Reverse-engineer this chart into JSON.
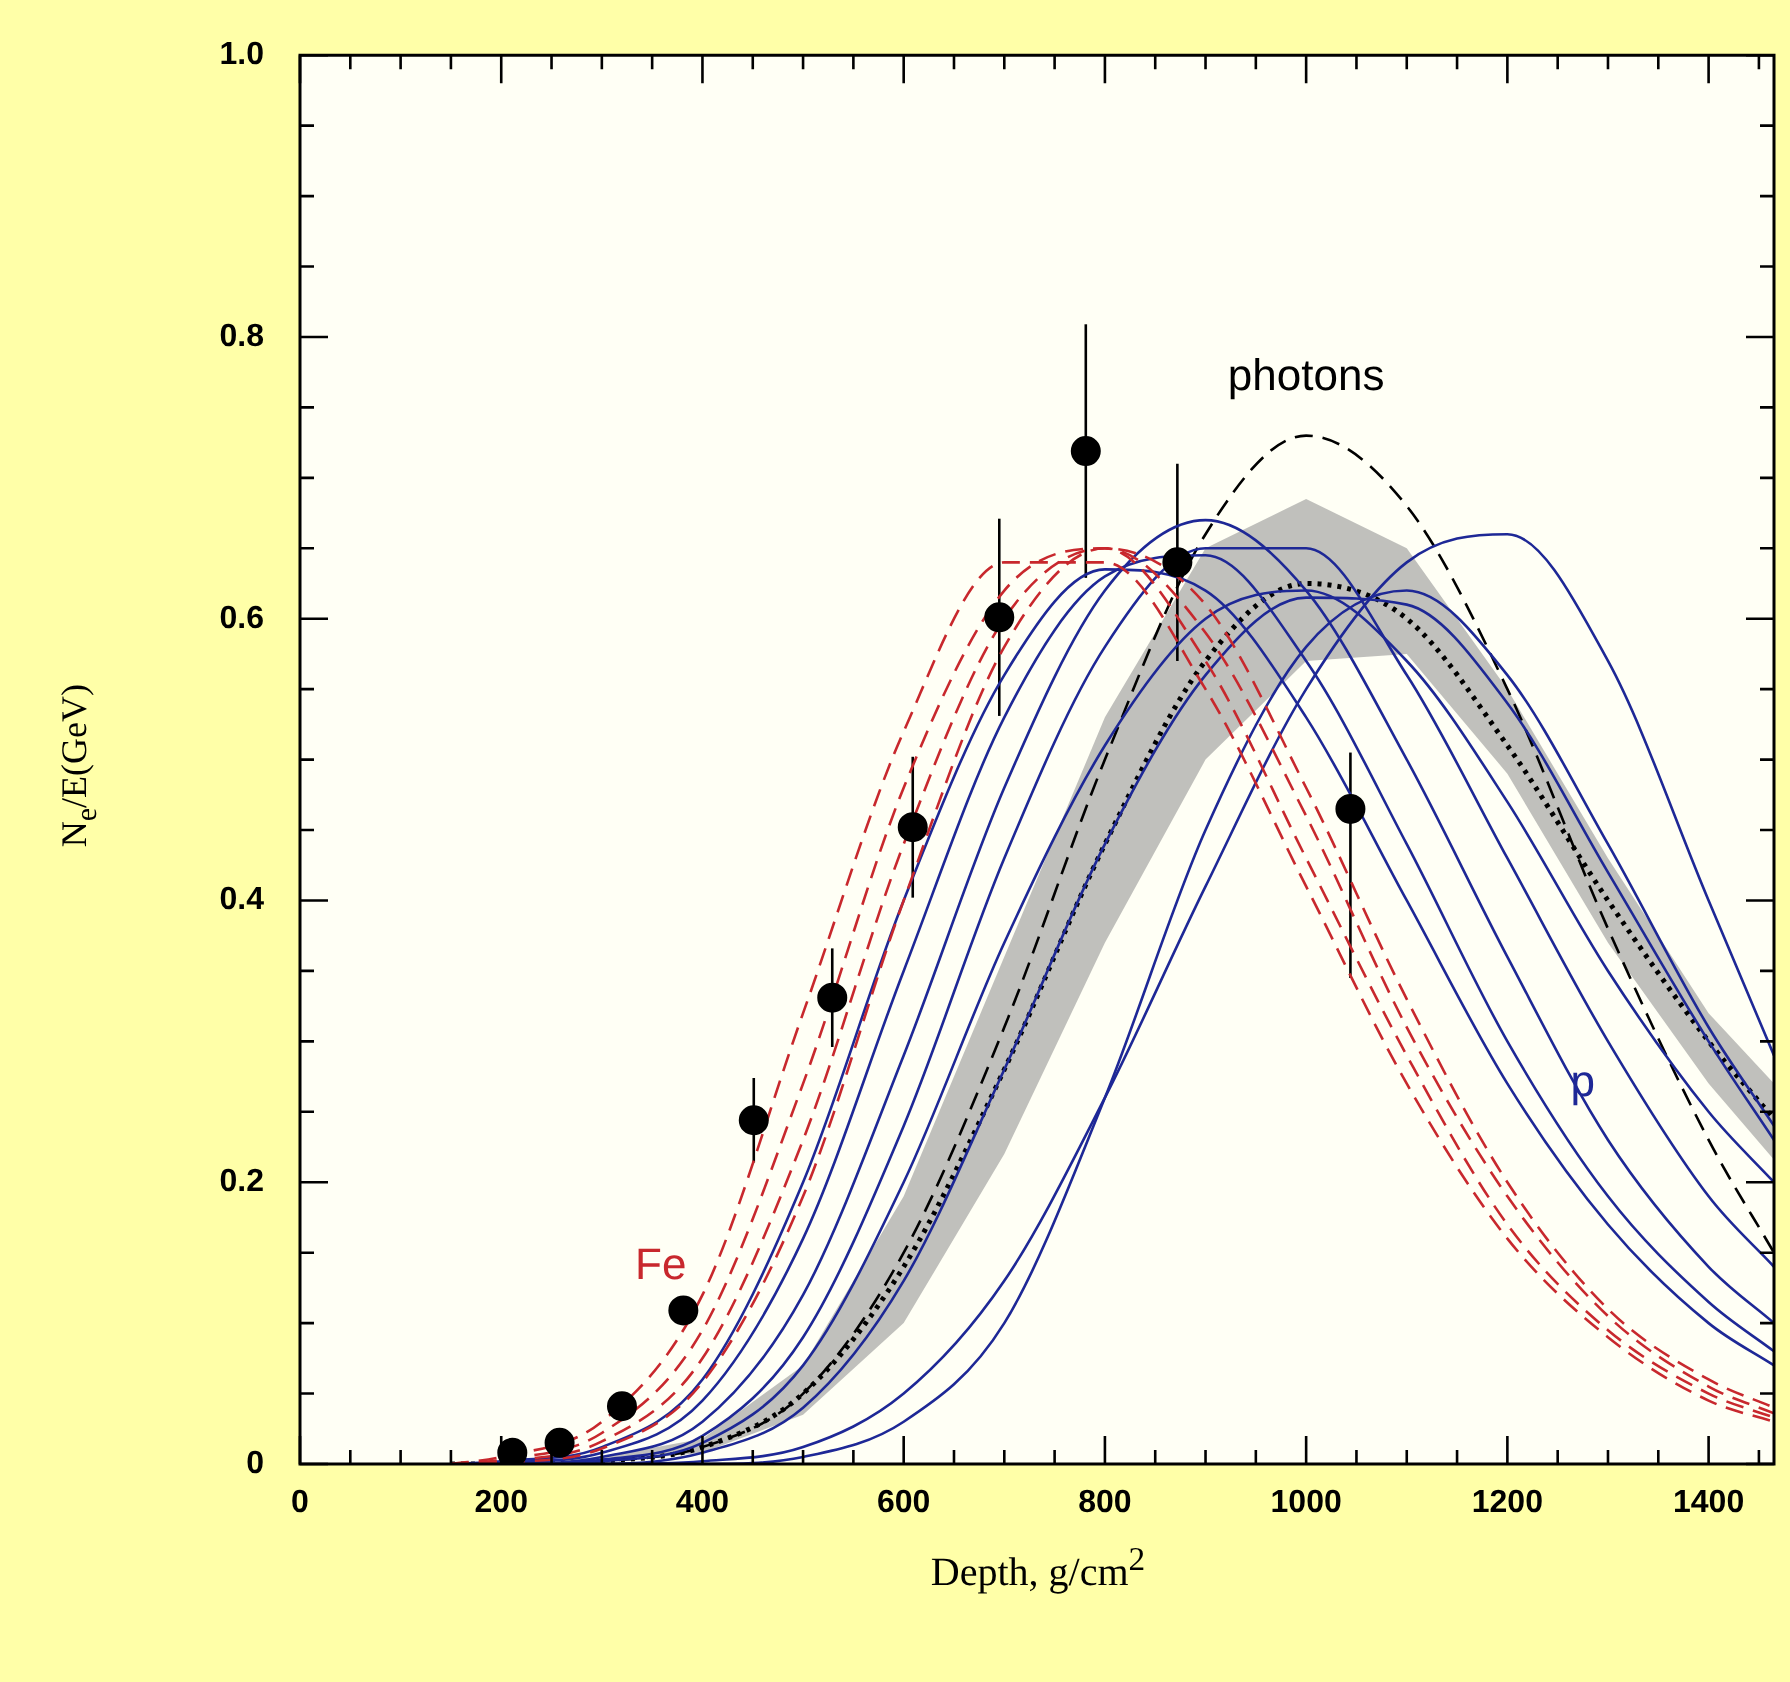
{
  "chart_data": {
    "type": "line",
    "xlabel": "Depth, g/cm$^{2}$",
    "ylabel": "N$_{e}$/E(GeV)",
    "x": [
      150,
      200,
      300,
      400,
      500,
      600,
      700,
      800,
      900,
      1000,
      1100,
      1200,
      1300,
      1400,
      1465
    ],
    "xlim": [
      0,
      1465
    ],
    "ylim": [
      0,
      1
    ],
    "xticks": [
      0,
      {
        "value": 50,
        "label": null
      },
      {
        "value": 100,
        "label": null
      },
      {
        "value": 150,
        "label": null
      },
      200,
      {
        "value": 250,
        "label": null
      },
      {
        "value": 300,
        "label": null
      },
      {
        "value": 350,
        "label": null
      },
      400,
      {
        "value": 450,
        "label": null
      },
      {
        "value": 500,
        "label": null
      },
      {
        "value": 550,
        "label": null
      },
      600,
      {
        "value": 650,
        "label": null
      },
      {
        "value": 700,
        "label": null
      },
      {
        "value": 750,
        "label": null
      },
      800,
      {
        "value": 850,
        "label": null
      },
      {
        "value": 900,
        "label": null
      },
      {
        "value": 950,
        "label": null
      },
      1000,
      {
        "value": 1050,
        "label": null
      },
      {
        "value": 1100,
        "label": null
      },
      {
        "value": 1150,
        "label": null
      },
      1200,
      {
        "value": 1250,
        "label": null
      },
      {
        "value": 1300,
        "label": null
      },
      {
        "value": 1350,
        "label": null
      },
      1400,
      {
        "value": 1450,
        "label": null
      }
    ],
    "yticks": [
      0,
      {
        "value": 0.05,
        "label": null
      },
      {
        "value": 0.1,
        "label": null
      },
      {
        "value": 0.15,
        "label": null
      },
      0.2,
      {
        "value": 0.25,
        "label": null
      },
      {
        "value": 0.3,
        "label": null
      },
      {
        "value": 0.35,
        "label": null
      },
      0.4,
      {
        "value": 0.45,
        "label": null
      },
      {
        "value": 0.5,
        "label": null
      },
      {
        "value": 0.55,
        "label": null
      },
      0.6,
      {
        "value": 0.65,
        "label": null
      },
      {
        "value": 0.7,
        "label": null
      },
      {
        "value": 0.75,
        "label": null
      },
      0.8,
      {
        "value": 0.85,
        "label": null
      },
      {
        "value": 0.9,
        "label": null
      },
      {
        "value": 0.95,
        "label": null
      },
      {
        "value": 1,
        "label": "1.0"
      }
    ],
    "grid": false,
    "legend": false,
    "marker": "none",
    "series": [
      {
        "type": "line",
        "color": "#c8282d",
        "line_style": "dashed",
        "values": [
          0,
          0.005,
          0.03,
          0.12,
          0.32,
          0.52,
          0.64,
          0.64,
          0.55,
          0.41,
          0.27,
          0.16,
          0.09,
          0.045,
          0.03
        ]
      },
      {
        "type": "line",
        "color": "#c8282d",
        "line_style": "dashed",
        "values": [
          0,
          0.003,
          0.022,
          0.095,
          0.27,
          0.48,
          0.62,
          0.65,
          0.57,
          0.43,
          0.29,
          0.17,
          0.095,
          0.05,
          0.033
        ]
      },
      {
        "type": "line",
        "color": "#c8282d",
        "line_style": "dashed",
        "values": [
          0,
          0.002,
          0.016,
          0.075,
          0.23,
          0.44,
          0.6,
          0.65,
          0.59,
          0.46,
          0.31,
          0.19,
          0.105,
          0.055,
          0.036
        ]
      },
      {
        "type": "line",
        "color": "#c8282d",
        "line_style": "dashed",
        "values": [
          0,
          0.001,
          0.011,
          0.058,
          0.19,
          0.4,
          0.58,
          0.65,
          0.61,
          0.48,
          0.33,
          0.2,
          0.11,
          0.06,
          0.04
        ]
      },
      {
        "type": "line",
        "color": "#1e2896",
        "line_style": "solid",
        "values": [
          0,
          0.002,
          0.012,
          0.06,
          0.2,
          0.4,
          0.56,
          0.635,
          0.62,
          0.53,
          0.4,
          0.27,
          0.17,
          0.1,
          0.07
        ]
      },
      {
        "type": "line",
        "color": "#1e2896",
        "line_style": "solid",
        "values": [
          0,
          0.001,
          0.008,
          0.045,
          0.16,
          0.35,
          0.53,
          0.63,
          0.645,
          0.57,
          0.44,
          0.3,
          0.19,
          0.115,
          0.08
        ]
      },
      {
        "type": "line",
        "color": "#1e2896",
        "line_style": "solid",
        "values": [
          0,
          0,
          0.005,
          0.03,
          0.12,
          0.29,
          0.48,
          0.62,
          0.67,
          0.62,
          0.5,
          0.36,
          0.23,
          0.14,
          0.1
        ]
      },
      {
        "type": "line",
        "color": "#1e2896",
        "line_style": "solid",
        "values": [
          0,
          0,
          0.003,
          0.02,
          0.09,
          0.24,
          0.43,
          0.58,
          0.65,
          0.65,
          0.56,
          0.43,
          0.3,
          0.19,
          0.14
        ]
      },
      {
        "type": "line",
        "color": "#1e2896",
        "line_style": "solid",
        "values": [
          0,
          0,
          0.002,
          0.015,
          0.07,
          0.2,
          0.37,
          0.51,
          0.6,
          0.62,
          0.57,
          0.47,
          0.35,
          0.25,
          0.2
        ]
      },
      {
        "type": "line",
        "color": "#1e2896",
        "line_style": "solid",
        "values": [
          0,
          0,
          0,
          0.008,
          0.04,
          0.13,
          0.28,
          0.44,
          0.56,
          0.615,
          0.61,
          0.54,
          0.42,
          0.3,
          0.23
        ]
      },
      {
        "type": "line",
        "color": "#1e2896",
        "line_style": "solid",
        "values": [
          0,
          0,
          0,
          0.002,
          0.012,
          0.05,
          0.13,
          0.26,
          0.41,
          0.55,
          0.64,
          0.66,
          0.57,
          0.4,
          0.29
        ]
      },
      {
        "type": "line",
        "color": "#1e2896",
        "line_style": "solid",
        "values": [
          0,
          0,
          0,
          0,
          0.005,
          0.03,
          0.1,
          0.26,
          0.45,
          0.58,
          0.62,
          0.56,
          0.44,
          0.31,
          0.24
        ]
      },
      {
        "name": "photons",
        "color": "#000000",
        "line_style": "dashed",
        "values": [
          0,
          0,
          0.002,
          0.012,
          0.05,
          0.15,
          0.31,
          0.5,
          0.66,
          0.73,
          0.68,
          0.55,
          0.38,
          0.23,
          0.15
        ]
      },
      {
        "color": "#000000",
        "line_style": "dotted",
        "values": [
          0,
          0,
          0.002,
          0.012,
          0.05,
          0.14,
          0.28,
          0.44,
          0.57,
          0.625,
          0.6,
          0.51,
          0.4,
          0.3,
          0.245
        ],
        "lower": [
          0,
          0,
          0.001,
          0.008,
          0.035,
          0.1,
          0.22,
          0.37,
          0.5,
          0.57,
          0.575,
          0.49,
          0.37,
          0.27,
          0.216
        ],
        "upper": [
          0,
          0,
          0.005,
          0.018,
          0.07,
          0.19,
          0.36,
          0.53,
          0.65,
          0.685,
          0.65,
          0.55,
          0.43,
          0.32,
          0.27
        ]
      },
      {
        "type": "scatter",
        "color": "#000000",
        "marker": "circle",
        "x": [
          211,
          258,
          320,
          381,
          451,
          529,
          609,
          695,
          781,
          872,
          1044
        ],
        "values": [
          0.008,
          0.015,
          0.041,
          0.109,
          0.244,
          0.331,
          0.452,
          0.601,
          0.719,
          0.64,
          0.465
        ],
        "errors": [
          null,
          null,
          null,
          null,
          0.03,
          0.035,
          0.05,
          0.07,
          0.09,
          0.07,
          [
            0.345,
            0.505
          ]
        ]
      }
    ],
    "annotations": [
      {
        "text": "Fe",
        "x": 400,
        "y": 0.12
      },
      {
        "text": "p",
        "x": 1275,
        "y": 0.27
      }
    ]
  }
}
